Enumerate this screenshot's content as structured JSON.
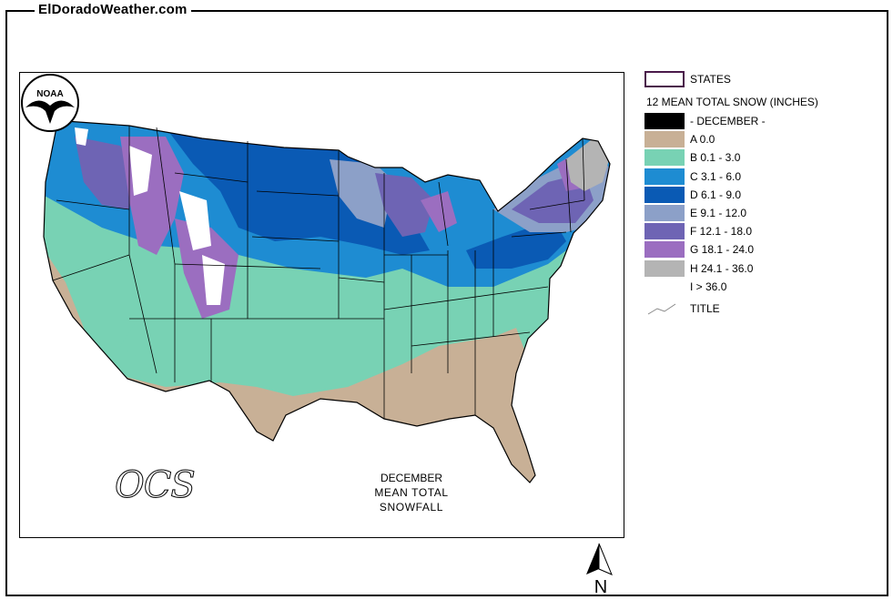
{
  "site": {
    "title": "ElDoradoWeather.com"
  },
  "map": {
    "caption_line1": "DECEMBER",
    "caption_line2": "MEAN TOTAL SNOWFALL",
    "noaa_text": "NOAA",
    "ocs_text": "OCS",
    "north_label": "N"
  },
  "legend": {
    "states_label": "STATES",
    "heading": "12 MEAN TOTAL SNOW (INCHES)",
    "items": [
      {
        "label": "- DECEMBER -",
        "color": "#000000"
      },
      {
        "label": "A 0.0",
        "color": "#c8b096"
      },
      {
        "label": "B 0.1 - 3.0",
        "color": "#78d2b4"
      },
      {
        "label": "C 3.1 - 6.0",
        "color": "#1e8cd2"
      },
      {
        "label": "D 6.1 - 9.0",
        "color": "#0a5ab4"
      },
      {
        "label": "E 9.1 - 12.0",
        "color": "#8ca0c8"
      },
      {
        "label": "F 12.1 - 18.0",
        "color": "#6e64b4"
      },
      {
        "label": "G 18.1 - 24.0",
        "color": "#9b6ec0"
      },
      {
        "label": "H 24.1 - 36.0",
        "color": "#b4b4b4"
      },
      {
        "label": "I > 36.0",
        "color": "#ffffff"
      }
    ],
    "title_label": "TITLE"
  }
}
